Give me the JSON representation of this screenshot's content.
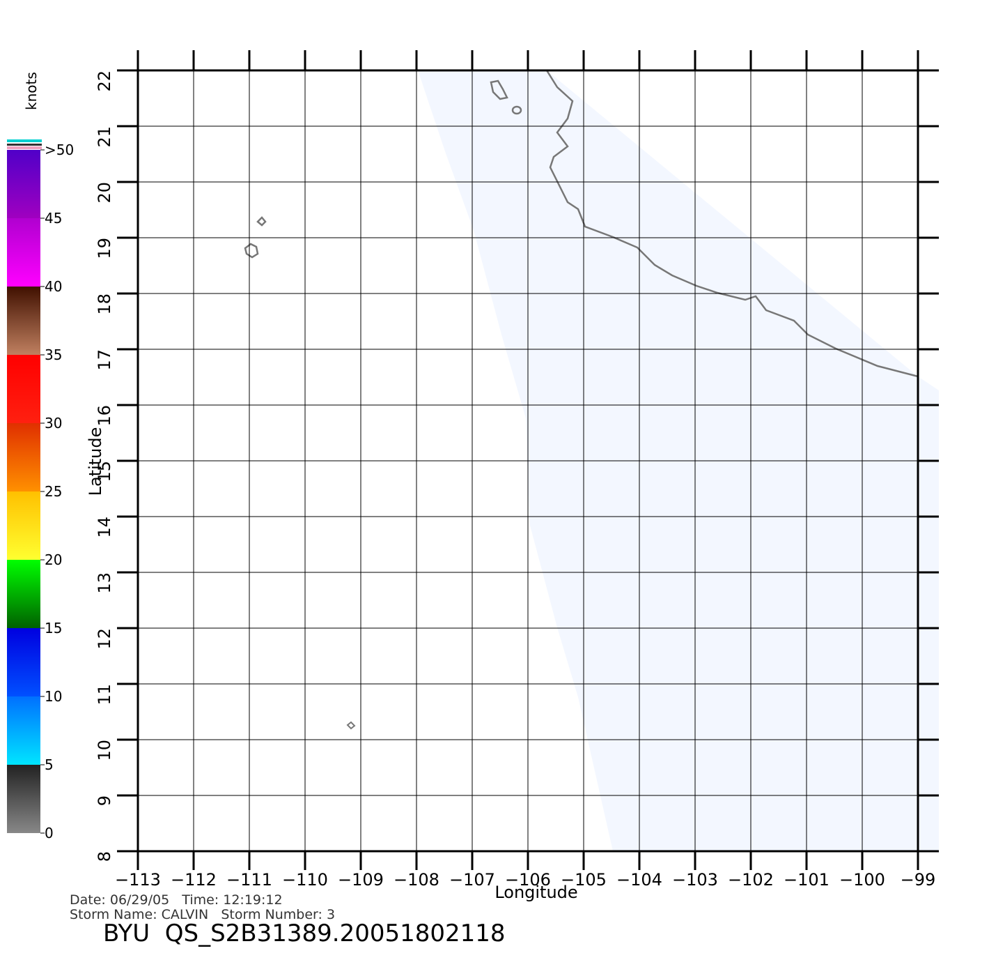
{
  "chart_data": {
    "type": "map",
    "xlabel": "Longitude",
    "ylabel": "Latitude",
    "xlim": [
      -113,
      -99
    ],
    "ylim": [
      8,
      22
    ],
    "xticks": [
      {
        "value": -113,
        "label": "−113"
      },
      {
        "value": -112,
        "label": "−112"
      },
      {
        "value": -111,
        "label": "−111"
      },
      {
        "value": -110,
        "label": "−110"
      },
      {
        "value": -109,
        "label": "−109"
      },
      {
        "value": -108,
        "label": "−108"
      },
      {
        "value": -107,
        "label": "−107"
      },
      {
        "value": -106,
        "label": "−106"
      },
      {
        "value": -105,
        "label": "−105"
      },
      {
        "value": -104,
        "label": "−104"
      },
      {
        "value": -103,
        "label": "−103"
      },
      {
        "value": -102,
        "label": "−102"
      },
      {
        "value": -101,
        "label": "−101"
      },
      {
        "value": -100,
        "label": "−100"
      },
      {
        "value": -99,
        "label": "−99"
      }
    ],
    "yticks": [
      8,
      9,
      10,
      11,
      12,
      13,
      14,
      15,
      16,
      17,
      18,
      19,
      20,
      21,
      22
    ],
    "grid": true,
    "colorbar": {
      "label": "knots",
      "lim": [
        0,
        50
      ],
      "ticks": [
        0,
        5,
        10,
        15,
        20,
        25,
        30,
        35,
        40,
        45,
        {
          "value": 50,
          "label": ">50"
        }
      ],
      "colors": [
        "#888888",
        "#00e5ff",
        "#0000ff",
        "#00ff00",
        "#ffe000",
        "#ff7000",
        "#ff1010",
        "#7a3010",
        "#ff00ff",
        "#6a00c8"
      ]
    },
    "footer": {
      "date": "Date: 06/29/05   Time: 12:19:12",
      "storm": "Storm Name: CALVIN   Storm Number: 3",
      "file": "BYU  QS_S2B31389.20051802118"
    }
  }
}
